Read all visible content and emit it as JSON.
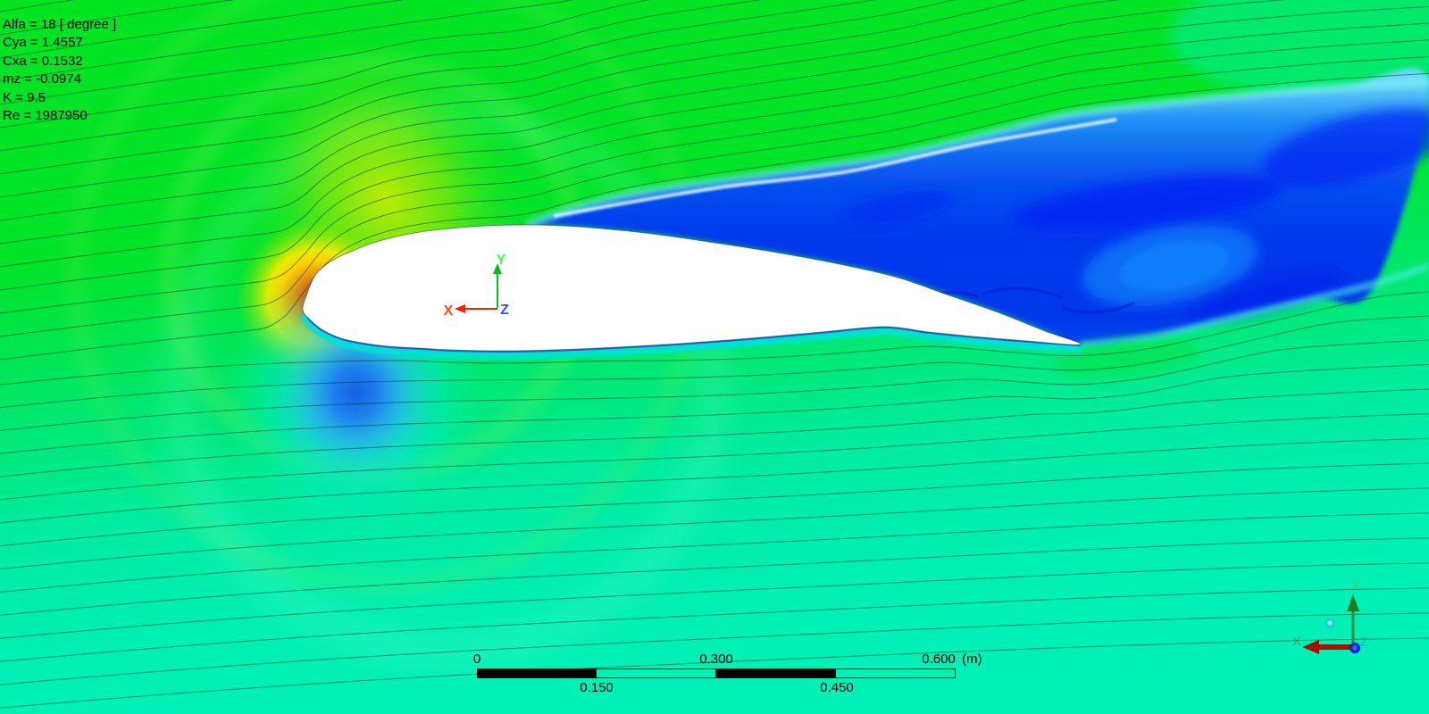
{
  "hud": {
    "lines": [
      "Alfa = 18 [ degree ]",
      "Cya = 1.4557",
      "Cxa = 0.1532",
      "mz = -0.0974",
      "K = 9.5",
      "Re = 1987950"
    ]
  },
  "triad_center": {
    "x_label": "X",
    "y_label": "Y",
    "z_label": "Z"
  },
  "triad_corner": {
    "x_label": "X",
    "y_label": "Y",
    "z_label": "Z"
  },
  "scale_bar": {
    "ticks_top": [
      {
        "text": "0"
      },
      {
        "text": "0.300"
      },
      {
        "text": "0.600"
      }
    ],
    "unit": "(m)",
    "ticks_bottom": [
      {
        "text": "0.150"
      },
      {
        "text": "0.450"
      }
    ]
  },
  "colors": {
    "field_green": "#00e420",
    "field_turquoise": "#00efb4",
    "wake_blue": "#0238ec",
    "wake_light_blue": "#0870f8",
    "stagnation_red": "#ff1e00",
    "suction_yellow": "#d8ec00",
    "low_speed_blob_blue": "#1e78e8",
    "axis_x_red": "#f02000",
    "axis_y_green": "#00c818",
    "axis_z_blue": "#3052ff"
  }
}
